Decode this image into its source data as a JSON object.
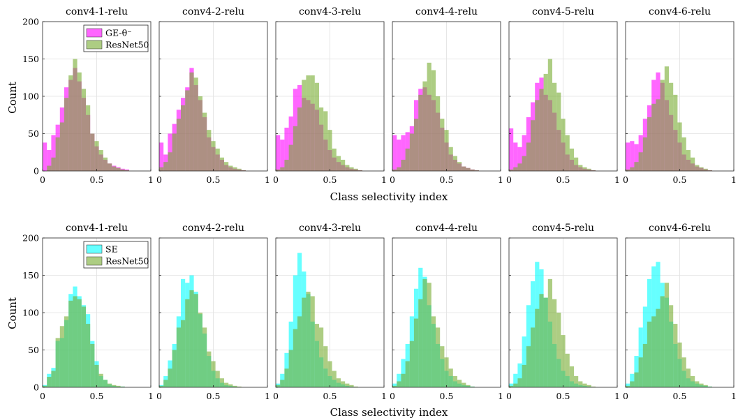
{
  "colors": {
    "ge": "#ff00ff",
    "se": "#00ffff",
    "resnet": "#77ac30",
    "grid": "#e0e0e0",
    "axis": "#262626"
  },
  "chart_data": {
    "type": "bar",
    "bin_edges_start": 0,
    "bin_width": 0.04,
    "xlim": [
      0,
      1
    ],
    "ylim": [
      0,
      200
    ],
    "xticks": [
      "0",
      "0.5",
      "1"
    ],
    "yticks": [
      "0",
      "50",
      "100",
      "150",
      "200"
    ],
    "xlabel": "Class selectivity index",
    "ylabel": "Count",
    "rows": [
      {
        "legend": [
          "GE-θ⁻",
          "ResNet50"
        ],
        "series_colors": [
          "ge",
          "resnet"
        ],
        "panels": [
          {
            "title": "conv4-1-relu",
            "series": [
              {
                "name": "GE-θ⁻",
                "values": [
                  38,
                  28,
                  48,
                  62,
                  85,
                  112,
                  122,
                  138,
                  120,
                  98,
                  75,
                  50,
                  33,
                  22,
                  15,
                  10,
                  7,
                  5,
                  3,
                  2
                ]
              },
              {
                "name": "ResNet50",
                "values": [
                  0,
                  7,
                  18,
                  45,
                  65,
                  98,
                  128,
                  150,
                  132,
                  110,
                  88,
                  50,
                  40,
                  28,
                  18,
                  10,
                  6,
                  4,
                  2,
                  1
                ]
              }
            ]
          },
          {
            "title": "conv4-2-relu",
            "series": [
              {
                "name": "GE-θ⁻",
                "values": [
                  38,
                  22,
                  50,
                  63,
                  82,
                  98,
                  112,
                  138,
                  115,
                  95,
                  72,
                  45,
                  32,
                  22,
                  15,
                  8,
                  5,
                  3,
                  2,
                  1
                ]
              },
              {
                "name": "ResNet50",
                "values": [
                  5,
                  12,
                  25,
                  50,
                  70,
                  88,
                  108,
                  132,
                  125,
                  100,
                  78,
                  55,
                  40,
                  30,
                  18,
                  12,
                  7,
                  5,
                  3,
                  1
                ]
              }
            ]
          },
          {
            "title": "conv4-3-relu",
            "series": [
              {
                "name": "GE-θ⁻",
                "values": [
                  48,
                  42,
                  58,
                  73,
                  110,
                  115,
                  98,
                  95,
                  90,
                  82,
                  62,
                  42,
                  28,
                  18,
                  12,
                  8,
                  5,
                  3,
                  2,
                  1
                ]
              },
              {
                "name": "ResNet50",
                "values": [
                  2,
                  5,
                  15,
                  35,
                  60,
                  85,
                  122,
                  128,
                  128,
                  118,
                  85,
                  80,
                  55,
                  30,
                  20,
                  15,
                  8,
                  5,
                  3,
                  1
                ]
              }
            ]
          },
          {
            "title": "conv4-4-relu",
            "series": [
              {
                "name": "GE-θ⁻",
                "values": [
                  48,
                  42,
                  48,
                  52,
                  60,
                  95,
                  110,
                  112,
                  102,
                  95,
                  78,
                  58,
                  38,
                  22,
                  15,
                  10,
                  6,
                  4,
                  2,
                  1
                ]
              },
              {
                "name": "ResNet50",
                "values": [
                  2,
                  5,
                  15,
                  30,
                  50,
                  70,
                  102,
                  120,
                  145,
                  135,
                  100,
                  70,
                  55,
                  32,
                  20,
                  12,
                  6,
                  4,
                  2,
                  1
                ]
              }
            ]
          },
          {
            "title": "conv4-5-relu",
            "series": [
              {
                "name": "GE-θ⁻",
                "values": [
                  57,
                  38,
                  32,
                  48,
                  72,
                  92,
                  118,
                  125,
                  102,
                  95,
                  78,
                  55,
                  38,
                  22,
                  15,
                  8,
                  5,
                  3,
                  2,
                  1
                ]
              },
              {
                "name": "ResNet50",
                "values": [
                  2,
                  5,
                  10,
                  20,
                  38,
                  68,
                  95,
                  110,
                  130,
                  150,
                  118,
                  105,
                  70,
                  48,
                  30,
                  18,
                  8,
                  5,
                  3,
                  1
                ]
              }
            ]
          },
          {
            "title": "conv4-6-relu",
            "series": [
              {
                "name": "GE-θ⁻",
                "values": [
                  38,
                  40,
                  36,
                  48,
                  70,
                  88,
                  122,
                  132,
                  118,
                  95,
                  75,
                  55,
                  38,
                  22,
                  15,
                  10,
                  6,
                  4,
                  2,
                  1
                ]
              },
              {
                "name": "ResNet50",
                "values": [
                  2,
                  5,
                  12,
                  25,
                  45,
                  72,
                  90,
                  96,
                  122,
                  140,
                  118,
                  102,
                  65,
                  45,
                  28,
                  18,
                  8,
                  5,
                  3,
                  1
                ]
              }
            ]
          }
        ]
      },
      {
        "legend": [
          "SE",
          "ResNet50"
        ],
        "series_colors": [
          "se",
          "resnet"
        ],
        "panels": [
          {
            "title": "conv4-1-relu",
            "series": [
              {
                "name": "SE",
                "values": [
                  3,
                  18,
                  26,
                  62,
                  66,
                  90,
                  125,
                  135,
                  122,
                  110,
                  98,
                  62,
                  35,
                  15,
                  10,
                  4,
                  2,
                  1,
                  1,
                  0
                ]
              },
              {
                "name": "ResNet50",
                "values": [
                  2,
                  14,
                  22,
                  66,
                  82,
                  95,
                  116,
                  122,
                  118,
                  108,
                  85,
                  58,
                  30,
                  18,
                  10,
                  5,
                  3,
                  2,
                  1,
                  0
                ]
              }
            ]
          },
          {
            "title": "conv4-2-relu",
            "series": [
              {
                "name": "SE",
                "values": [
                  3,
                  15,
                  36,
                  58,
                  95,
                  145,
                  140,
                  150,
                  128,
                  98,
                  72,
                  42,
                  22,
                  12,
                  6,
                  3,
                  2,
                  1,
                  0,
                  0
                ]
              },
              {
                "name": "ResNet50",
                "values": [
                  2,
                  10,
                  25,
                  50,
                  80,
                  90,
                  118,
                  130,
                  125,
                  100,
                  80,
                  48,
                  35,
                  22,
                  12,
                  6,
                  4,
                  2,
                  1,
                  0
                ]
              }
            ]
          },
          {
            "title": "conv4-3-relu",
            "series": [
              {
                "name": "SE",
                "values": [
                  5,
                  18,
                  46,
                  88,
                  150,
                  180,
                  155,
                  125,
                  88,
                  62,
                  40,
                  25,
                  15,
                  10,
                  6,
                  4,
                  2,
                  1,
                  0,
                  0
                ]
              },
              {
                "name": "ResNet50",
                "values": [
                  3,
                  10,
                  25,
                  50,
                  78,
                  95,
                  120,
                  128,
                  122,
                  85,
                  80,
                  55,
                  35,
                  22,
                  12,
                  8,
                  5,
                  3,
                  1,
                  0
                ]
              }
            ]
          },
          {
            "title": "conv4-4-relu",
            "series": [
              {
                "name": "SE",
                "values": [
                  5,
                  18,
                  38,
                  58,
                  95,
                  132,
                  160,
                  148,
                  110,
                  85,
                  58,
                  38,
                  22,
                  15,
                  8,
                  5,
                  3,
                  2,
                  1,
                  0
                ]
              },
              {
                "name": "ResNet50",
                "values": [
                  2,
                  8,
                  18,
                  35,
                  62,
                  92,
                  118,
                  145,
                  140,
                  95,
                  80,
                  55,
                  40,
                  25,
                  15,
                  10,
                  6,
                  3,
                  1,
                  0
                ]
              }
            ]
          },
          {
            "title": "conv4-5-relu",
            "series": [
              {
                "name": "SE",
                "values": [
                  5,
                  18,
                  32,
                  68,
                  110,
                  142,
                  168,
                  158,
                  120,
                  88,
                  58,
                  38,
                  22,
                  15,
                  8,
                  5,
                  3,
                  2,
                  1,
                  0
                ]
              },
              {
                "name": "ResNet50",
                "values": [
                  2,
                  5,
                  12,
                  30,
                  55,
                  80,
                  105,
                  125,
                  120,
                  145,
                  118,
                  100,
                  70,
                  45,
                  28,
                  15,
                  8,
                  5,
                  3,
                  1
                ]
              }
            ]
          },
          {
            "title": "conv4-6-relu",
            "series": [
              {
                "name": "SE",
                "values": [
                  5,
                  18,
                  42,
                  80,
                  108,
                  145,
                  162,
                  168,
                  140,
                  120,
                  88,
                  58,
                  38,
                  22,
                  12,
                  8,
                  5,
                  3,
                  2,
                  1
                ]
              },
              {
                "name": "ResNet50",
                "values": [
                  2,
                  8,
                  20,
                  40,
                  58,
                  88,
                  95,
                  105,
                  122,
                  140,
                  110,
                  85,
                  60,
                  40,
                  25,
                  15,
                  8,
                  5,
                  3,
                  1
                ]
              }
            ]
          }
        ]
      }
    ]
  }
}
